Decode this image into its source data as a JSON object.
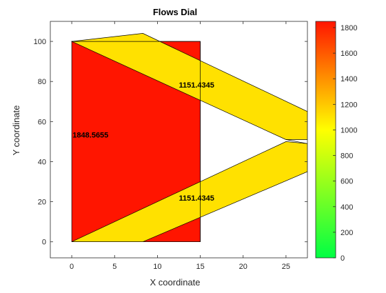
{
  "chart_data": {
    "type": "area",
    "title": "Flows Dial",
    "xlabel": "X coordinate",
    "ylabel": "Y coordinate",
    "xlim": [
      -2.5,
      27.5
    ],
    "ylim": [
      -8,
      110
    ],
    "x_ticks": [
      0,
      5,
      10,
      15,
      20,
      25
    ],
    "y_ticks": [
      0,
      20,
      40,
      60,
      80,
      100
    ],
    "grid": false,
    "background_color": "#ffffff",
    "regions": [
      {
        "name": "node-block",
        "color": "#ff1500",
        "points": [
          [
            0,
            100
          ],
          [
            15,
            100
          ],
          [
            15,
            0
          ],
          [
            0,
            0
          ]
        ],
        "label": "1848.5655",
        "label_pos": [
          0.1,
          52
        ]
      },
      {
        "name": "upper-flow-band",
        "color": "#ffe100",
        "points": [
          [
            0,
            100
          ],
          [
            8.3,
            104
          ],
          [
            27.5,
            65
          ],
          [
            27.5,
            51
          ],
          [
            25,
            51
          ],
          [
            0,
            100
          ]
        ],
        "label": "1151.4345",
        "label_pos": [
          12.5,
          77
        ]
      },
      {
        "name": "lower-flow-band",
        "color": "#ffe100",
        "points": [
          [
            0,
            0
          ],
          [
            8.3,
            0
          ],
          [
            27.5,
            35
          ],
          [
            27.5,
            49
          ],
          [
            25,
            50
          ],
          [
            0,
            0
          ]
        ],
        "label": "1151.4345",
        "label_pos": [
          12.5,
          20.5
        ]
      }
    ],
    "lines": [
      {
        "name": "node-top-edge",
        "points": [
          [
            0,
            100
          ],
          [
            15,
            100
          ]
        ]
      },
      {
        "name": "node-right-edge",
        "points": [
          [
            15,
            100
          ],
          [
            15,
            0
          ]
        ]
      },
      {
        "name": "node-bottom-edge",
        "points": [
          [
            0,
            0
          ],
          [
            15,
            0
          ]
        ]
      },
      {
        "name": "upper-band-inner-edge",
        "points": [
          [
            25,
            51
          ],
          [
            27.5,
            49
          ]
        ]
      }
    ],
    "colorbar": {
      "ticks": [
        0,
        200,
        400,
        600,
        800,
        1000,
        1200,
        1400,
        1600,
        1800
      ],
      "range": [
        0,
        1848.5655
      ],
      "stops": [
        {
          "value": 0,
          "color": "#00ff44"
        },
        {
          "value": 1000,
          "color": "#ffff00"
        },
        {
          "value": 1848.5655,
          "color": "#ff1500"
        }
      ]
    }
  }
}
